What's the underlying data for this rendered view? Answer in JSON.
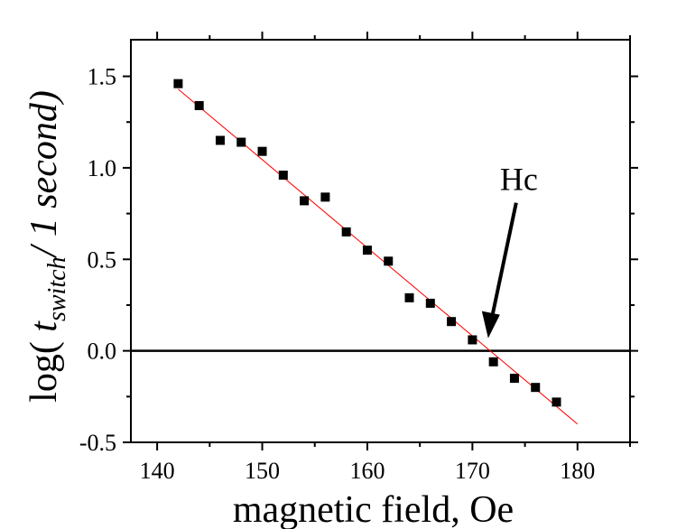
{
  "chart_data": {
    "type": "scatter",
    "title": "",
    "xlabel": "magnetic field, Oe",
    "ylabel_parts": {
      "prefix": "log( ",
      "t": "t",
      "sub": "switch",
      "suffix": "/ 1 second)"
    },
    "xlim": [
      137.5,
      185
    ],
    "ylim": [
      -0.5,
      1.7
    ],
    "x_ticks": [
      140,
      150,
      160,
      170,
      180
    ],
    "y_ticks": [
      -0.5,
      0.0,
      0.5,
      1.0,
      1.5
    ],
    "x_tick_labels": [
      "140",
      "150",
      "160",
      "170",
      "180"
    ],
    "y_tick_labels": [
      "-0.5",
      "0.0",
      "0.5",
      "1.0",
      "1.5"
    ],
    "series": [
      {
        "marker": "square",
        "color": "#000000",
        "x": [
          142,
          144,
          146,
          148,
          150,
          152,
          154,
          156,
          158,
          160,
          162,
          164,
          166,
          168,
          170,
          172,
          174,
          176,
          178
        ],
        "y": [
          1.46,
          1.34,
          1.15,
          1.14,
          1.09,
          0.96,
          0.82,
          0.84,
          0.65,
          0.55,
          0.49,
          0.29,
          0.26,
          0.16,
          0.06,
          -0.06,
          -0.15,
          -0.2,
          -0.28
        ]
      }
    ],
    "fit_line": {
      "color": "#ff0000",
      "x": [
        142,
        180
      ],
      "y": [
        1.43,
        -0.4
      ]
    },
    "reference_line": {
      "y": 0.0,
      "color": "#000000"
    },
    "annotation": {
      "text": "Hc",
      "x": 171.5,
      "y": 0.0
    },
    "grid": false
  }
}
